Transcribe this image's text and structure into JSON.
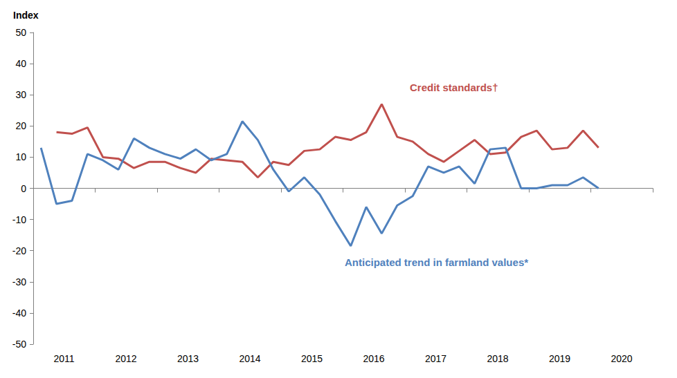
{
  "chart_data": {
    "type": "line",
    "title": "Index",
    "categories": [
      null,
      "2011",
      null,
      null,
      null,
      "2012",
      null,
      null,
      null,
      "2013",
      null,
      null,
      null,
      "2014",
      null,
      null,
      null,
      "2015",
      null,
      null,
      null,
      "2016",
      null,
      null,
      null,
      "2017",
      null,
      null,
      null,
      "2018",
      null,
      null,
      null,
      "2019",
      null,
      null,
      null,
      "2020",
      null,
      null
    ],
    "series": [
      {
        "name": "Credit standards†",
        "color": "#c0504d",
        "values": [
          null,
          18,
          17.5,
          19.5,
          10,
          9.5,
          6.5,
          8.5,
          8.5,
          6.5,
          5,
          9.5,
          9,
          8.5,
          3.5,
          8.5,
          7.5,
          12,
          12.5,
          16.5,
          15.5,
          18,
          27,
          16.5,
          15,
          11,
          8.5,
          12,
          15.5,
          11,
          11.5,
          16.5,
          18.5,
          12.5,
          13,
          18.5,
          13,
          null,
          null,
          null
        ]
      },
      {
        "name": "Anticipated trend in farmland values*",
        "color": "#4f81bd",
        "values": [
          13,
          -5,
          -4,
          11,
          9,
          6,
          16,
          13,
          11,
          9.5,
          12.5,
          9,
          11,
          21.5,
          15.5,
          6,
          -1,
          3.5,
          -2,
          -10.5,
          -18.5,
          -6,
          -14.5,
          -5.5,
          -2.5,
          7,
          5,
          7,
          1.5,
          12.5,
          13,
          0,
          0,
          1,
          1,
          3.5,
          0,
          null,
          null,
          null
        ]
      }
    ],
    "ylim": [
      -50,
      50
    ],
    "yticks": [
      -50,
      -40,
      -30,
      -20,
      -10,
      0,
      10,
      20,
      30,
      40,
      50
    ],
    "grid": false
  }
}
